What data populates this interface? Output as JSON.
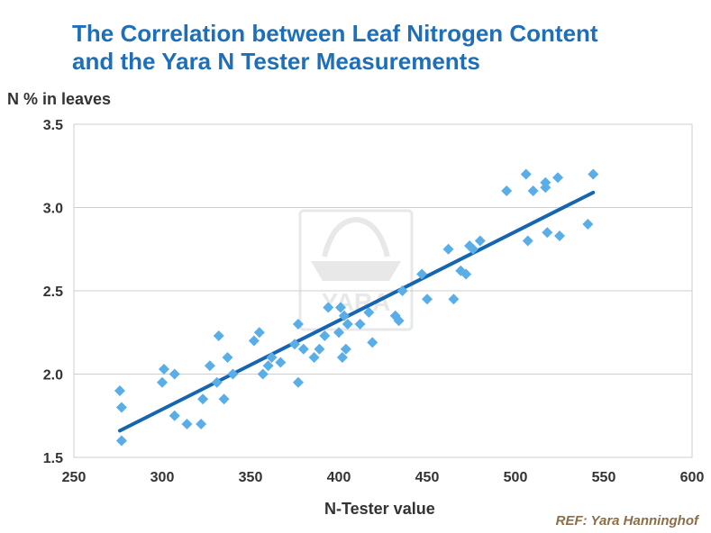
{
  "title": {
    "line1": "The Correlation between Leaf Nitrogen Content",
    "line2": "and the Yara N Tester Measurements"
  },
  "watermark": "YARA",
  "ref": "REF: Yara Hanninghof",
  "colors": {
    "title": "#1f6fb8",
    "points": "#5aaee8",
    "trend": "#1565b0",
    "ref": "#8b6e47"
  },
  "chart_data": {
    "type": "scatter",
    "title": "The Correlation between Leaf Nitrogen Content and the Yara N Tester Measurements",
    "xlabel": "N-Tester value",
    "ylabel": "N % in leaves",
    "xlim": [
      250,
      600
    ],
    "ylim": [
      1.5,
      3.5
    ],
    "xticks": [
      250,
      300,
      350,
      400,
      450,
      500,
      550,
      600
    ],
    "yticks": [
      1.5,
      2.0,
      2.5,
      3.0,
      3.5
    ],
    "xtick_labels": [
      "250",
      "300",
      "350",
      "400",
      "450",
      "500",
      "550",
      "600"
    ],
    "ytick_labels": [
      "1.5",
      "2.0",
      "2.5",
      "3.0",
      "3.5"
    ],
    "grid": "horizontal",
    "points": [
      [
        276,
        1.9
      ],
      [
        277,
        1.8
      ],
      [
        277,
        1.6
      ],
      [
        300,
        1.95
      ],
      [
        301,
        2.03
      ],
      [
        307,
        2.0
      ],
      [
        307,
        1.75
      ],
      [
        314,
        1.7
      ],
      [
        322,
        1.7
      ],
      [
        323,
        1.85
      ],
      [
        327,
        2.05
      ],
      [
        331,
        1.95
      ],
      [
        332,
        2.23
      ],
      [
        335,
        1.85
      ],
      [
        337,
        2.1
      ],
      [
        340,
        2.0
      ],
      [
        352,
        2.2
      ],
      [
        355,
        2.25
      ],
      [
        357,
        2.0
      ],
      [
        360,
        2.05
      ],
      [
        362,
        2.1
      ],
      [
        367,
        2.07
      ],
      [
        375,
        2.18
      ],
      [
        377,
        2.3
      ],
      [
        377,
        1.95
      ],
      [
        380,
        2.15
      ],
      [
        386,
        2.1
      ],
      [
        389,
        2.15
      ],
      [
        392,
        2.23
      ],
      [
        394,
        2.4
      ],
      [
        400,
        2.25
      ],
      [
        401,
        2.4
      ],
      [
        402,
        2.1
      ],
      [
        403,
        2.35
      ],
      [
        404,
        2.15
      ],
      [
        405,
        2.3
      ],
      [
        412,
        2.3
      ],
      [
        417,
        2.37
      ],
      [
        419,
        2.19
      ],
      [
        432,
        2.35
      ],
      [
        434,
        2.32
      ],
      [
        436,
        2.5
      ],
      [
        447,
        2.6
      ],
      [
        450,
        2.45
      ],
      [
        462,
        2.75
      ],
      [
        465,
        2.45
      ],
      [
        469,
        2.62
      ],
      [
        472,
        2.6
      ],
      [
        474,
        2.77
      ],
      [
        476,
        2.75
      ],
      [
        480,
        2.8
      ],
      [
        495,
        3.1
      ],
      [
        506,
        3.2
      ],
      [
        507,
        2.8
      ],
      [
        510,
        3.1
      ],
      [
        517,
        3.12
      ],
      [
        517,
        3.15
      ],
      [
        518,
        2.85
      ],
      [
        524,
        3.18
      ],
      [
        525,
        2.83
      ],
      [
        541,
        2.9
      ],
      [
        544,
        3.2
      ]
    ],
    "trendline": {
      "x": [
        276,
        544
      ],
      "y": [
        1.66,
        3.09
      ]
    }
  }
}
